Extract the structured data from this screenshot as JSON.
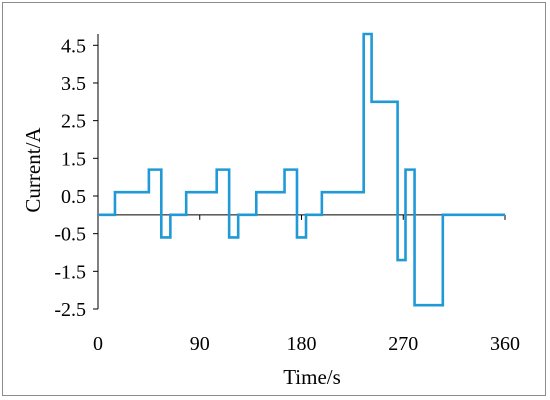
{
  "chart_data": {
    "type": "line",
    "line_shape": "step",
    "title": "",
    "xlabel": "Time/s",
    "ylabel": "Current/A",
    "xlim": [
      0,
      360
    ],
    "ylim": [
      -2.5,
      4.8
    ],
    "x_ticks": [
      0,
      90,
      180,
      270,
      360
    ],
    "x_tick_labels": [
      "0",
      "90",
      "180",
      "270",
      "360"
    ],
    "y_ticks": [
      4.5,
      3.5,
      2.5,
      1.5,
      0.5,
      -0.5,
      -1.5,
      -2.5
    ],
    "y_tick_labels": [
      "4.5",
      "3.5",
      "2.5",
      "1.5",
      "0.5",
      "-0.5",
      "-1.5",
      "-2.5"
    ],
    "grid": false,
    "legend": "none",
    "series": [
      {
        "color": "#1f9ad6",
        "x": [
          0,
          15,
          15,
          45,
          45,
          56,
          56,
          64,
          64,
          78,
          78,
          105,
          105,
          116,
          116,
          124,
          124,
          140,
          140,
          165,
          165,
          176,
          176,
          184,
          184,
          198,
          198,
          235,
          235,
          242,
          242,
          265,
          265,
          272,
          272,
          280,
          280,
          305,
          305,
          313,
          313,
          360
        ],
        "y": [
          0,
          0,
          0.6,
          0.6,
          1.2,
          1.2,
          -0.6,
          -0.6,
          0,
          0,
          0.6,
          0.6,
          1.2,
          1.2,
          -0.6,
          -0.6,
          0,
          0,
          0.6,
          0.6,
          1.2,
          1.2,
          -0.6,
          -0.6,
          0,
          0,
          0.6,
          0.6,
          4.8,
          4.8,
          3.0,
          3.0,
          -1.2,
          -1.2,
          1.2,
          1.2,
          -2.4,
          -2.4,
          0,
          0,
          0,
          0
        ]
      }
    ]
  }
}
